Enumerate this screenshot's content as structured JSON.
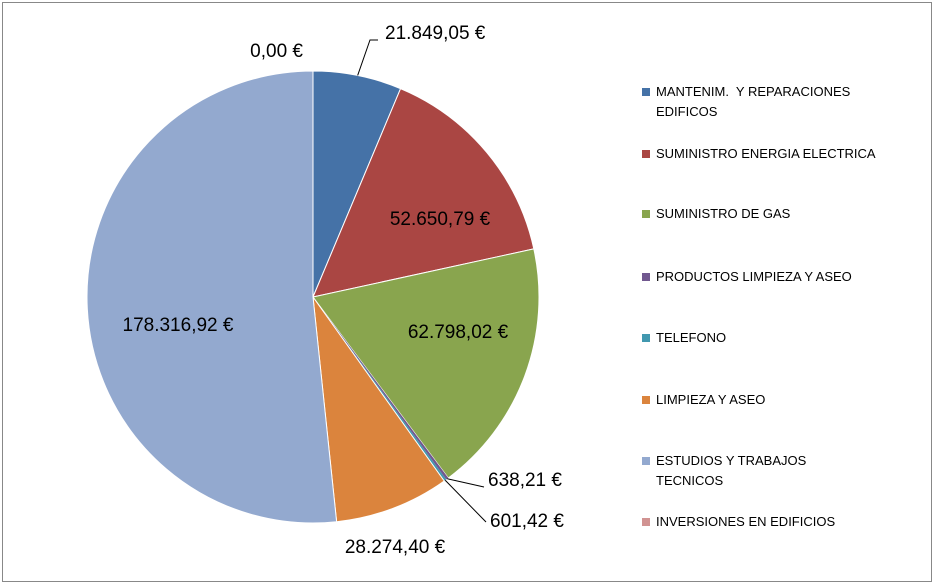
{
  "chart_data": {
    "type": "pie",
    "categories": [
      "MANTENIM.  Y REPARACIONES EDIFICOS",
      "SUMINISTRO ENERGIA ELECTRICA",
      "SUMINISTRO DE GAS",
      "PRODUCTOS LIMPIEZA Y ASEO",
      "TELEFONO",
      "LIMPIEZA Y ASEO",
      "ESTUDIOS Y TRABAJOS TECNICOS",
      "INVERSIONES EN EDIFICIOS"
    ],
    "values": [
      21849.05,
      52650.79,
      62798.02,
      638.21,
      601.42,
      28274.4,
      178316.92,
      0.0
    ],
    "value_labels": [
      "21.849,05 €",
      "52.650,79 €",
      "62.798,02 €",
      "638,21 €",
      "601,42 €",
      "28.274,40 €",
      "178.316,92 €",
      "0,00 €"
    ],
    "colors": [
      "#4572a7",
      "#aa4643",
      "#89a54e",
      "#71588f",
      "#4198af",
      "#db843d",
      "#93a9cf",
      "#d19392"
    ],
    "legend": "right"
  }
}
